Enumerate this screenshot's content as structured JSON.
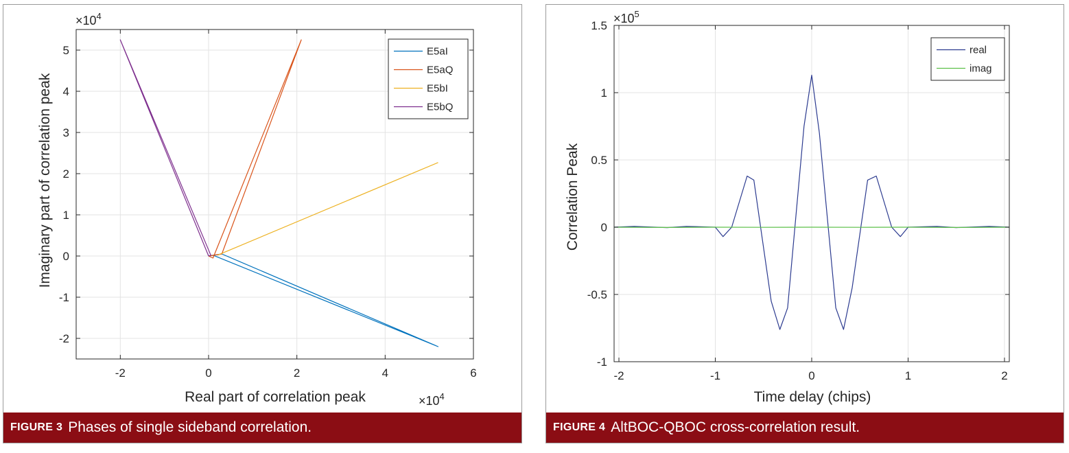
{
  "figure3": {
    "caption_label": "FIGURE 3",
    "caption_text": "Phases of single sideband correlation.",
    "chart_data": {
      "type": "line",
      "title": "",
      "xlabel": "Real part of correlation peak",
      "ylabel": "Imaginary part of correlation peak",
      "x_exponent": "×10",
      "x_exponent_power": "4",
      "y_exponent": "×10",
      "y_exponent_power": "4",
      "xlim": [
        -3,
        6
      ],
      "ylim": [
        -2.5,
        5.5
      ],
      "xticks": [
        -2,
        0,
        2,
        4,
        6
      ],
      "xtick_labels": [
        "-2",
        "0",
        "2",
        "4",
        "6"
      ],
      "yticks": [
        -2,
        -1,
        0,
        1,
        2,
        3,
        4,
        5
      ],
      "ytick_labels": [
        "-2",
        "-1",
        "0",
        "1",
        "2",
        "3",
        "4",
        "5"
      ],
      "grid": true,
      "legend_position": "top-right",
      "series": [
        {
          "name": "E5aI",
          "color": "#0072bd",
          "x": [
            0,
            0.3,
            5.2,
            5.2,
            0.1,
            0
          ],
          "y": [
            0,
            0.05,
            -2.2,
            -2.2,
            0.02,
            0
          ]
        },
        {
          "name": "E5aQ",
          "color": "#d95319",
          "x": [
            0,
            0.1,
            2.1,
            2.1,
            0.3,
            0
          ],
          "y": [
            0,
            -0.05,
            5.25,
            5.25,
            0.05,
            0
          ]
        },
        {
          "name": "E5bI",
          "color": "#edb120",
          "x": [
            0.2,
            5.2
          ],
          "y": [
            0.02,
            2.27
          ]
        },
        {
          "name": "E5bQ",
          "color": "#7e2f8e",
          "x": [
            0,
            -2.0,
            -2.0,
            0.05,
            0
          ],
          "y": [
            0,
            5.25,
            5.25,
            0.02,
            0
          ]
        }
      ]
    }
  },
  "figure4": {
    "caption_label": "FIGURE 4",
    "caption_text": "AltBOC-QBOC cross-correlation result.",
    "chart_data": {
      "type": "line",
      "title": "",
      "xlabel": "Time delay (chips)",
      "ylabel": "Correlation Peak",
      "y_exponent": "×10",
      "y_exponent_power": "5",
      "xlim": [
        -2.05,
        2.05
      ],
      "ylim": [
        -1,
        1.5
      ],
      "xticks": [
        -2,
        -1,
        0,
        1,
        2
      ],
      "xtick_labels": [
        "-2",
        "-1",
        "0",
        "1",
        "2"
      ],
      "yticks": [
        -1,
        -0.5,
        0,
        0.5,
        1,
        1.5
      ],
      "ytick_labels": [
        "-1",
        "-0.5",
        "0",
        "0.5",
        "1",
        "1.5"
      ],
      "grid": true,
      "legend_position": "top-right",
      "series": [
        {
          "name": "real",
          "color": "#2b3a8f",
          "x": [
            -2.05,
            -1.84,
            -1.5,
            -1.3,
            -1.0,
            -0.92,
            -0.83,
            -0.67,
            -0.6,
            -0.42,
            -0.33,
            -0.25,
            -0.08,
            0,
            0.08,
            0.25,
            0.33,
            0.42,
            0.58,
            0.67,
            0.83,
            0.92,
            1.0,
            1.3,
            1.5,
            1.84,
            2.05
          ],
          "y": [
            0,
            0.006,
            -0.003,
            0.006,
            0,
            -0.07,
            0,
            0.38,
            0.35,
            -0.55,
            -0.76,
            -0.6,
            0.75,
            1.13,
            0.7,
            -0.6,
            -0.76,
            -0.45,
            0.35,
            0.38,
            0,
            -0.07,
            0,
            0.006,
            -0.003,
            0.006,
            0
          ]
        },
        {
          "name": "imag",
          "color": "#5cc048",
          "x": [
            -2.05,
            -1.5,
            -1.0,
            -0.5,
            0,
            0.5,
            1.0,
            1.5,
            2.05
          ],
          "y": [
            0,
            -0.002,
            0,
            -0.001,
            0,
            -0.001,
            0,
            -0.002,
            0
          ]
        }
      ]
    }
  }
}
